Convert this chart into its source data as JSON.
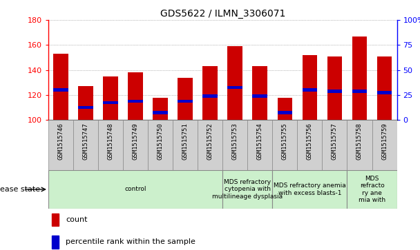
{
  "title": "GDS5622 / ILMN_3306071",
  "samples": [
    "GSM1515746",
    "GSM1515747",
    "GSM1515748",
    "GSM1515749",
    "GSM1515750",
    "GSM1515751",
    "GSM1515752",
    "GSM1515753",
    "GSM1515754",
    "GSM1515755",
    "GSM1515756",
    "GSM1515757",
    "GSM1515758",
    "GSM1515759"
  ],
  "counts": [
    153,
    127,
    135,
    138,
    118,
    134,
    143,
    159,
    143,
    118,
    152,
    151,
    167,
    151
  ],
  "percentile_values": [
    124,
    110,
    114,
    115,
    106,
    115,
    119,
    126,
    119,
    106,
    124,
    123,
    123,
    122
  ],
  "ymin": 100,
  "ymax": 180,
  "y_left_ticks": [
    100,
    120,
    140,
    160,
    180
  ],
  "y_right_ticks": [
    0,
    25,
    50,
    75,
    100
  ],
  "bar_color": "#cc0000",
  "percentile_color": "#0000cc",
  "bar_width": 0.6,
  "groups": [
    {
      "label": "control",
      "start": 0,
      "end": 7,
      "color": "#ccf0cc"
    },
    {
      "label": "MDS refractory\ncytopenia with\nmultilineage dysplasia",
      "start": 7,
      "end": 9,
      "color": "#ccf0cc"
    },
    {
      "label": "MDS refractory anemia\nwith excess blasts-1",
      "start": 9,
      "end": 12,
      "color": "#ccf0cc"
    },
    {
      "label": "MDS\nrefracto\nry ane\nmia with",
      "start": 12,
      "end": 14,
      "color": "#ccf0cc"
    }
  ],
  "disease_state_label": "disease state",
  "legend_count_label": "count",
  "legend_percentile_label": "percentile rank within the sample",
  "sample_box_color": "#d0d0d0",
  "fig_bg": "#ffffff"
}
